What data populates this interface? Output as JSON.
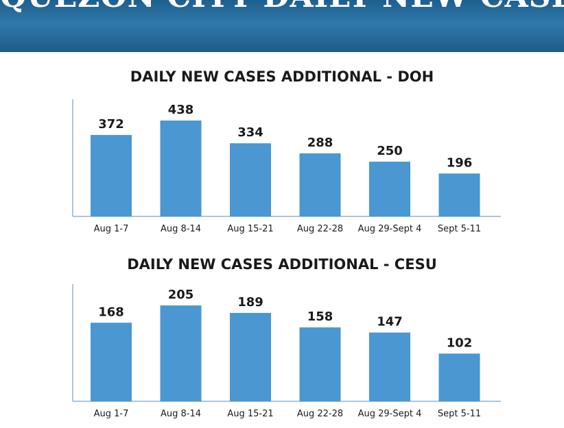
{
  "header": {
    "title": "QUEZON CITY DAILY NEW CASES"
  },
  "colors": {
    "banner": "#2a6e9e",
    "bar": "#4a97d2",
    "axis": "#8fb3cf",
    "label": "#1a1a1a"
  },
  "chart_data": [
    {
      "type": "bar",
      "title": "DAILY NEW CASES ADDITIONAL - DOH",
      "xlabel": "",
      "ylabel": "",
      "categories": [
        "Aug 1-7",
        "Aug 8-14",
        "Aug 15-21",
        "Aug 22-28",
        "Aug 29-Sept 4",
        "Sept 5-11"
      ],
      "values": [
        372,
        438,
        334,
        288,
        250,
        196
      ],
      "value_labels": [
        "372",
        "438",
        "334",
        "288",
        "250",
        "196"
      ],
      "ylim": [
        0,
        438
      ],
      "grid": false
    },
    {
      "type": "bar",
      "title": "DAILY NEW CASES ADDITIONAL - CESU",
      "xlabel": "",
      "ylabel": "",
      "categories": [
        "Aug 1-7",
        "Aug 8-14",
        "Aug 15-21",
        "Aug 22-28",
        "Aug 29-Sept 4",
        "Sept 5-11"
      ],
      "values": [
        168,
        205,
        189,
        158,
        147,
        102
      ],
      "value_labels": [
        "168",
        "205",
        "189",
        "158",
        "147",
        "102"
      ],
      "ylim": [
        0,
        205
      ],
      "grid": false
    }
  ]
}
